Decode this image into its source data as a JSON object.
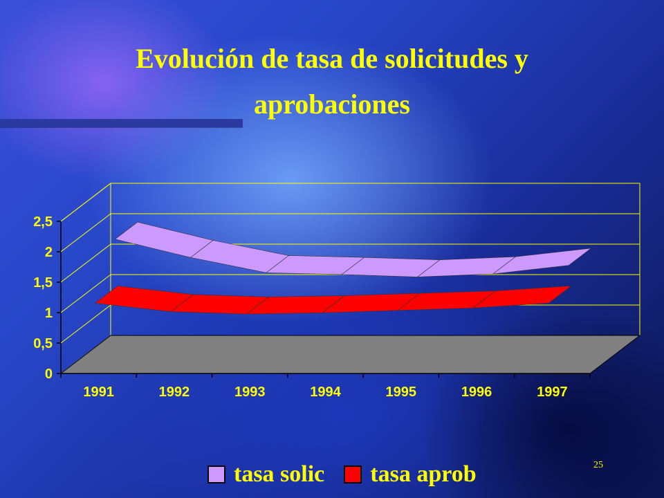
{
  "slide": {
    "title_line1": "Evolución de tasa de solicitudes y",
    "title_line2": "aprobaciones",
    "page_number": "25",
    "title_color": "#ffff00"
  },
  "chart_data": {
    "type": "area",
    "categories": [
      "1991",
      "1992",
      "1993",
      "1994",
      "1995",
      "1996",
      "1997"
    ],
    "y_ticks": [
      "0",
      "0,5",
      "1",
      "1,5",
      "2",
      "2,5"
    ],
    "ylim": [
      0,
      2.5
    ],
    "grid": true,
    "legend_placement": "bottom",
    "series": [
      {
        "name": "tasa solic",
        "values": [
          2.0,
          1.7,
          1.45,
          1.42,
          1.38,
          1.43,
          1.57
        ],
        "color": "#cc99ff"
      },
      {
        "name": "tasa aprob",
        "values": [
          1.2,
          1.06,
          1.02,
          1.04,
          1.08,
          1.12,
          1.2
        ],
        "color": "#ff0000"
      }
    ],
    "floor_color": "#808080"
  }
}
